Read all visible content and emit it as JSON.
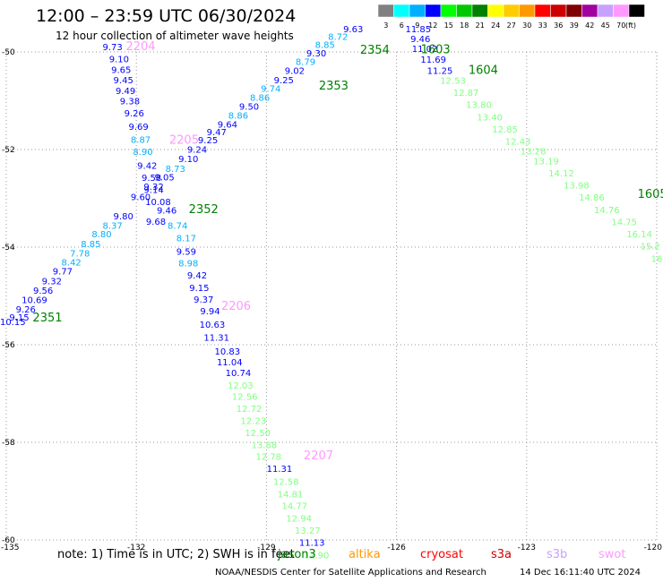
{
  "header": {
    "title": "12:00 – 23:59 UTC 06/30/2024",
    "subtitle": "12 hour collection of altimeter wave heights"
  },
  "colorbar": {
    "bins": [
      {
        "label": "3",
        "color": "#808080"
      },
      {
        "label": "6",
        "color": "#00ffff"
      },
      {
        "label": "9",
        "color": "#00b0ff"
      },
      {
        "label": "12",
        "color": "#0000ff"
      },
      {
        "label": "15",
        "color": "#00ff00"
      },
      {
        "label": "18",
        "color": "#00c800"
      },
      {
        "label": "21",
        "color": "#008000"
      },
      {
        "label": "24",
        "color": "#ffff00"
      },
      {
        "label": "27",
        "color": "#ffcc00"
      },
      {
        "label": "30",
        "color": "#ff9900"
      },
      {
        "label": "33",
        "color": "#ff0000"
      },
      {
        "label": "36",
        "color": "#cc0000"
      },
      {
        "label": "39",
        "color": "#800000"
      },
      {
        "label": "42",
        "color": "#a000a0"
      },
      {
        "label": "45",
        "color": "#c8a0ff"
      },
      {
        "label": "70",
        "color": "#ff99ff"
      },
      {
        "label": "",
        "color": "#000000"
      }
    ],
    "unit": "(ft)"
  },
  "axes": {
    "xticks": [
      "-135",
      "-132",
      "-129",
      "-126",
      "-123",
      "-120"
    ],
    "yticks": [
      "-50",
      "-52",
      "-54",
      "-56",
      "-58",
      "-60"
    ]
  },
  "footer": {
    "note": "note: 1) Time is in UTC; 2) SWH is in feet",
    "satellites": [
      {
        "name": "jason3",
        "color": "#008000"
      },
      {
        "name": "altika",
        "color": "#ff9900"
      },
      {
        "name": "cryosat",
        "color": "#ff0000"
      },
      {
        "name": "s3a",
        "color": "#cc0000"
      },
      {
        "name": "s3b",
        "color": "#c8a0ff"
      },
      {
        "name": "swot",
        "color": "#ff99ff"
      }
    ],
    "credit": "NOAA/NESDIS Center for Satellite Applications and Research",
    "timestamp": "14 Dec 16:11:40 UTC 2024"
  },
  "chart_data": {
    "type": "scatter",
    "title": "12:00 – 23:59 UTC 06/30/2024",
    "subtitle": "12 hour collection of altimeter wave heights",
    "xlim": [
      -135,
      -120
    ],
    "ylim": [
      -60,
      -50
    ],
    "xticks": [
      -135,
      -132,
      -129,
      -126,
      -123,
      -120
    ],
    "yticks": [
      -50,
      -52,
      -54,
      -56,
      -58,
      -60
    ],
    "grid": "dotted",
    "units": "ft",
    "series": [
      {
        "name": "swot",
        "color": "#ff99ff",
        "passes": [
          {
            "time": "2204",
            "lon": -131.9,
            "lat": -49.96
          },
          {
            "time": "2205",
            "lon": -130.9,
            "lat": -51.88
          },
          {
            "time": "2206",
            "lon": -129.7,
            "lat": -55.28
          },
          {
            "time": "2207",
            "lon": -127.8,
            "lat": -58.35
          }
        ],
        "points": [
          {
            "lon": -132.55,
            "lat": -49.96,
            "swh": "9.73",
            "color": "#0000ff"
          },
          {
            "lon": -132.4,
            "lat": -50.21,
            "swh": "9.10",
            "color": "#0000ff"
          },
          {
            "lon": -132.35,
            "lat": -50.43,
            "swh": "9.65",
            "color": "#0000ff"
          },
          {
            "lon": -132.3,
            "lat": -50.64,
            "swh": "9.45",
            "color": "#0000ff"
          },
          {
            "lon": -132.25,
            "lat": -50.86,
            "swh": "9.49",
            "color": "#0000ff"
          },
          {
            "lon": -132.15,
            "lat": -51.07,
            "swh": "9.38",
            "color": "#0000ff"
          },
          {
            "lon": -132.05,
            "lat": -51.32,
            "swh": "9.26",
            "color": "#0000ff"
          },
          {
            "lon": -131.95,
            "lat": -51.6,
            "swh": "9.69",
            "color": "#0000ff"
          },
          {
            "lon": -131.9,
            "lat": -51.86,
            "swh": "8.87",
            "color": "#00b0ff"
          },
          {
            "lon": -131.85,
            "lat": -52.11,
            "swh": "8.90",
            "color": "#00b0ff"
          },
          {
            "lon": -131.75,
            "lat": -52.39,
            "swh": "9.42",
            "color": "#0000ff"
          },
          {
            "lon": -131.65,
            "lat": -52.64,
            "swh": "9.58",
            "color": "#0000ff"
          },
          {
            "lon": -131.6,
            "lat": -52.89,
            "swh": "9.14",
            "color": "#0000ff"
          },
          {
            "lon": -131.5,
            "lat": -53.14,
            "swh": "10.08",
            "color": "#0000ff"
          },
          {
            "lon": -131.3,
            "lat": -53.31,
            "swh": "9.46",
            "color": "#0000ff"
          },
          {
            "lon": -131.55,
            "lat": -53.54,
            "swh": "9.68",
            "color": "#0000ff"
          },
          {
            "lon": -131.05,
            "lat": -53.62,
            "swh": "8.74",
            "color": "#00b0ff"
          },
          {
            "lon": -130.85,
            "lat": -53.88,
            "swh": "8.17",
            "color": "#00b0ff"
          },
          {
            "lon": -130.85,
            "lat": -54.16,
            "swh": "9.59",
            "color": "#0000ff"
          },
          {
            "lon": -130.8,
            "lat": -54.39,
            "swh": "8.98",
            "color": "#00b0ff"
          },
          {
            "lon": -130.6,
            "lat": -54.64,
            "swh": "9.42",
            "color": "#0000ff"
          },
          {
            "lon": -130.55,
            "lat": -54.9,
            "swh": "9.15",
            "color": "#0000ff"
          },
          {
            "lon": -130.45,
            "lat": -55.14,
            "swh": "9.37",
            "color": "#0000ff"
          },
          {
            "lon": -130.3,
            "lat": -55.38,
            "swh": "9.94",
            "color": "#0000ff"
          },
          {
            "lon": -130.25,
            "lat": -55.65,
            "swh": "10.63",
            "color": "#0000ff"
          },
          {
            "lon": -130.15,
            "lat": -55.92,
            "swh": "11.31",
            "color": "#0000ff"
          },
          {
            "lon": -129.9,
            "lat": -56.2,
            "swh": "10.83",
            "color": "#0000ff"
          },
          {
            "lon": -129.85,
            "lat": -56.42,
            "swh": "11.04",
            "color": "#0000ff"
          },
          {
            "lon": -129.65,
            "lat": -56.64,
            "swh": "10.74",
            "color": "#0000ff"
          },
          {
            "lon": -129.6,
            "lat": -56.9,
            "swh": "12.03",
            "color": "#80ff80"
          },
          {
            "lon": -129.5,
            "lat": -57.13,
            "swh": "12.56",
            "color": "#80ff80"
          },
          {
            "lon": -129.4,
            "lat": -57.38,
            "swh": "12.72",
            "color": "#80ff80"
          },
          {
            "lon": -129.3,
            "lat": -57.62,
            "swh": "12.23",
            "color": "#80ff80"
          },
          {
            "lon": -129.2,
            "lat": -57.87,
            "swh": "12.50",
            "color": "#80ff80"
          },
          {
            "lon": -129.05,
            "lat": -58.12,
            "swh": "13.88",
            "color": "#80ff80"
          },
          {
            "lon": -128.95,
            "lat": -58.36,
            "swh": "12.78",
            "color": "#80ff80"
          },
          {
            "lon": -128.7,
            "lat": -58.61,
            "swh": "11.31",
            "color": "#0000ff"
          },
          {
            "lon": -128.55,
            "lat": -58.87,
            "swh": "12.58",
            "color": "#80ff80"
          },
          {
            "lon": -128.45,
            "lat": -59.13,
            "swh": "14.81",
            "color": "#80ff80"
          },
          {
            "lon": -128.35,
            "lat": -59.37,
            "swh": "14.77",
            "color": "#80ff80"
          },
          {
            "lon": -128.25,
            "lat": -59.62,
            "swh": "12.94",
            "color": "#80ff80"
          },
          {
            "lon": -128.05,
            "lat": -59.87,
            "swh": "13.27",
            "color": "#80ff80"
          },
          {
            "lon": -127.95,
            "lat": -60.12,
            "swh": "11.13",
            "color": "#0000ff"
          },
          {
            "lon": -127.85,
            "lat": -60.38,
            "swh": "12.90",
            "color": "#80ff80"
          }
        ]
      },
      {
        "name": "jason3",
        "color": "#008000",
        "passes": [
          {
            "time": "2351",
            "lon": -134.05,
            "lat": -55.52
          },
          {
            "time": "2352",
            "lon": -130.45,
            "lat": -53.3
          },
          {
            "time": "2353",
            "lon": -127.45,
            "lat": -50.77
          },
          {
            "time": "2354",
            "lon": -126.5,
            "lat": -50.04
          },
          {
            "time": "1603",
            "lon": -125.1,
            "lat": -50.03
          },
          {
            "time": "1604",
            "lon": -124.0,
            "lat": -50.45
          },
          {
            "time": "1605",
            "lon": -120.1,
            "lat": -52.99
          }
        ],
        "points": [
          {
            "lon": -134.85,
            "lat": -55.6,
            "swh": "10.15",
            "color": "#0000ff"
          },
          {
            "lon": -134.7,
            "lat": -55.5,
            "swh": "9.15",
            "color": "#0000ff"
          },
          {
            "lon": -134.55,
            "lat": -55.34,
            "swh": "9.26",
            "color": "#0000ff"
          },
          {
            "lon": -134.35,
            "lat": -55.15,
            "swh": "10.69",
            "color": "#0000ff"
          },
          {
            "lon": -134.15,
            "lat": -54.95,
            "swh": "9.56",
            "color": "#0000ff"
          },
          {
            "lon": -133.95,
            "lat": -54.76,
            "swh": "9.32",
            "color": "#0000ff"
          },
          {
            "lon": -133.7,
            "lat": -54.56,
            "swh": "9.77",
            "color": "#0000ff"
          },
          {
            "lon": -133.5,
            "lat": -54.38,
            "swh": "8.42",
            "color": "#00b0ff"
          },
          {
            "lon": -133.3,
            "lat": -54.19,
            "swh": "7.78",
            "color": "#00b0ff"
          },
          {
            "lon": -133.05,
            "lat": -54.0,
            "swh": "8.85",
            "color": "#00b0ff"
          },
          {
            "lon": -132.8,
            "lat": -53.8,
            "swh": "8.80",
            "color": "#00b0ff"
          },
          {
            "lon": -132.55,
            "lat": -53.62,
            "swh": "8.37",
            "color": "#00b0ff"
          },
          {
            "lon": -132.3,
            "lat": -53.43,
            "swh": "9.80",
            "color": "#0000ff"
          },
          {
            "lon": -131.9,
            "lat": -53.04,
            "swh": "9.60",
            "color": "#0000ff"
          },
          {
            "lon": -131.6,
            "lat": -52.83,
            "swh": "9.32",
            "color": "#0000ff"
          },
          {
            "lon": -131.35,
            "lat": -52.63,
            "swh": "9.05",
            "color": "#0000ff"
          },
          {
            "lon": -131.1,
            "lat": -52.46,
            "swh": "8.73",
            "color": "#00b0ff"
          },
          {
            "lon": -130.8,
            "lat": -52.26,
            "swh": "9.10",
            "color": "#0000ff"
          },
          {
            "lon": -130.6,
            "lat": -52.06,
            "swh": "9.24",
            "color": "#0000ff"
          },
          {
            "lon": -130.35,
            "lat": -51.87,
            "swh": "9.25",
            "color": "#0000ff"
          },
          {
            "lon": -130.15,
            "lat": -51.71,
            "swh": "9.47",
            "color": "#0000ff"
          },
          {
            "lon": -129.9,
            "lat": -51.55,
            "swh": "9.64",
            "color": "#0000ff"
          },
          {
            "lon": -129.65,
            "lat": -51.37,
            "swh": "8.86",
            "color": "#00b0ff"
          },
          {
            "lon": -129.4,
            "lat": -51.18,
            "swh": "9.50",
            "color": "#0000ff"
          },
          {
            "lon": -129.15,
            "lat": -51.0,
            "swh": "8.86",
            "color": "#00b0ff"
          },
          {
            "lon": -128.9,
            "lat": -50.82,
            "swh": "9.74",
            "color": "#00b0ff"
          },
          {
            "lon": -128.6,
            "lat": -50.64,
            "swh": "9.25",
            "color": "#0000ff"
          },
          {
            "lon": -128.35,
            "lat": -50.45,
            "swh": "9.02",
            "color": "#0000ff"
          },
          {
            "lon": -128.1,
            "lat": -50.27,
            "swh": "8.79",
            "color": "#00b0ff"
          },
          {
            "lon": -127.85,
            "lat": -50.09,
            "swh": "9.30",
            "color": "#0000ff"
          },
          {
            "lon": -127.65,
            "lat": -49.92,
            "swh": "8.85",
            "color": "#00b0ff"
          },
          {
            "lon": -127.35,
            "lat": -49.75,
            "swh": "8.72",
            "color": "#00b0ff"
          },
          {
            "lon": -127.0,
            "lat": -49.6,
            "swh": "9.63",
            "color": "#0000ff"
          },
          {
            "lon": -125.5,
            "lat": -49.6,
            "swh": "11.85",
            "color": "#0000ff"
          },
          {
            "lon": -125.45,
            "lat": -49.8,
            "swh": "9.46",
            "color": "#0000ff"
          },
          {
            "lon": -125.35,
            "lat": -50.0,
            "swh": "11.02",
            "color": "#0000ff"
          },
          {
            "lon": -125.15,
            "lat": -50.22,
            "swh": "11.69",
            "color": "#0000ff"
          },
          {
            "lon": -125.0,
            "lat": -50.45,
            "swh": "11.25",
            "color": "#0000ff"
          },
          {
            "lon": -124.7,
            "lat": -50.65,
            "swh": "12.53",
            "color": "#80ff80"
          },
          {
            "lon": -124.4,
            "lat": -50.9,
            "swh": "12.87",
            "color": "#80ff80"
          },
          {
            "lon": -124.1,
            "lat": -51.15,
            "swh": "13.80",
            "color": "#80ff80"
          },
          {
            "lon": -123.85,
            "lat": -51.4,
            "swh": "13.40",
            "color": "#80ff80"
          },
          {
            "lon": -123.5,
            "lat": -51.65,
            "swh": "12.85",
            "color": "#80ff80"
          },
          {
            "lon": -123.2,
            "lat": -51.9,
            "swh": "12.43",
            "color": "#80ff80"
          },
          {
            "lon": -122.85,
            "lat": -52.1,
            "swh": "13.28",
            "color": "#80ff80"
          },
          {
            "lon": -122.55,
            "lat": -52.3,
            "swh": "13.19",
            "color": "#80ff80"
          },
          {
            "lon": -122.2,
            "lat": -52.55,
            "swh": "14.12",
            "color": "#80ff80"
          },
          {
            "lon": -121.85,
            "lat": -52.8,
            "swh": "13.98",
            "color": "#80ff80"
          },
          {
            "lon": -121.5,
            "lat": -53.05,
            "swh": "14.86",
            "color": "#80ff80"
          },
          {
            "lon": -121.15,
            "lat": -53.3,
            "swh": "14.76",
            "color": "#80ff80"
          },
          {
            "lon": -120.75,
            "lat": -53.55,
            "swh": "14.75",
            "color": "#80ff80"
          },
          {
            "lon": -120.4,
            "lat": -53.8,
            "swh": "16.14",
            "color": "#80ff80"
          },
          {
            "lon": -120.15,
            "lat": -54.05,
            "swh": "15.2",
            "color": "#80ff80"
          },
          {
            "lon": -120.0,
            "lat": -54.3,
            "swh": "16",
            "color": "#80ff80"
          }
        ]
      }
    ]
  }
}
